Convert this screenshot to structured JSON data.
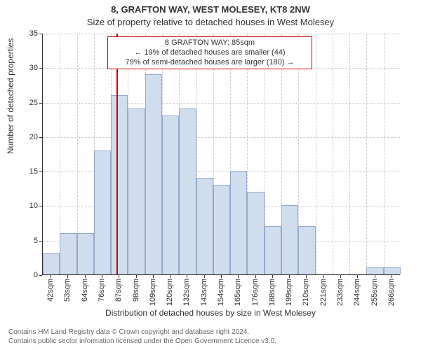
{
  "title_main": "8, GRAFTON WAY, WEST MOLESEY, KT8 2NW",
  "title_sub": "Size of property relative to detached houses in West Molesey",
  "ylabel": "Number of detached properties",
  "xlabel": "Distribution of detached houses by size in West Molesey",
  "footer_line1": "Contains HM Land Registry data © Crown copyright and database right 2024.",
  "footer_line2": "Contains public sector information licensed under the Open Government Licence v3.0.",
  "chart": {
    "type": "histogram",
    "background_color": "#ffffff",
    "grid_color": "#cccccc",
    "axis_color": "#333333",
    "text_color": "#333333",
    "ylim": [
      0,
      35
    ],
    "ytick_step": 5,
    "bar_color": "#cfddef",
    "bar_border_color": "#94a9c7",
    "bar_width_ratio": 1.0,
    "marker_line_color": "#c80000",
    "marker_x_value": 85,
    "categories": [
      "42sqm",
      "53sqm",
      "64sqm",
      "76sqm",
      "87sqm",
      "98sqm",
      "109sqm",
      "120sqm",
      "132sqm",
      "143sqm",
      "154sqm",
      "165sqm",
      "176sqm",
      "188sqm",
      "199sqm",
      "210sqm",
      "221sqm",
      "233sqm",
      "244sqm",
      "255sqm",
      "266sqm"
    ],
    "x_values": [
      42,
      53,
      64,
      76,
      87,
      98,
      109,
      120,
      132,
      143,
      154,
      165,
      176,
      188,
      199,
      210,
      221,
      233,
      244,
      255,
      266
    ],
    "values": [
      3,
      6,
      6,
      18,
      26,
      24,
      29,
      23,
      24,
      14,
      13,
      15,
      12,
      7,
      10,
      7,
      0,
      0,
      0,
      1,
      1
    ],
    "label_fontsize": 12,
    "tick_fontsize": 11,
    "title_fontsize": 13
  },
  "annotation": {
    "border_color": "#c80000",
    "background_color": "#ffffff",
    "line1": "8 GRAFTON WAY: 85sqm",
    "line2": "← 19% of detached houses are smaller (44)",
    "line3": "79% of semi-detached houses are larger (180) →"
  }
}
